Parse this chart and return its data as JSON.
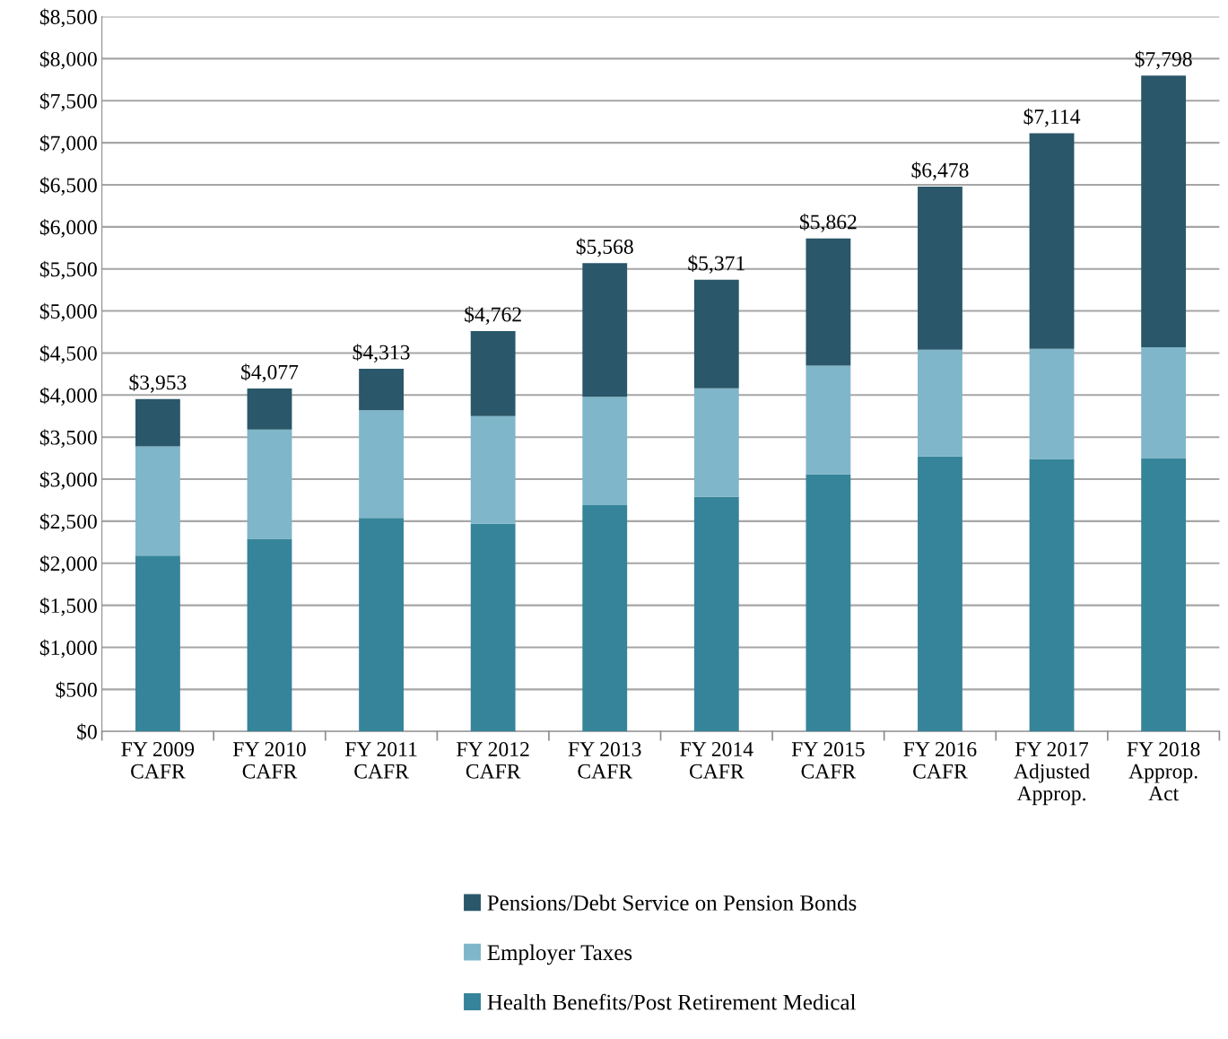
{
  "chart_data": {
    "type": "bar",
    "stacked": true,
    "categories": [
      "FY 2009\nCAFR",
      "FY 2010\nCAFR",
      "FY 2011\nCAFR",
      "FY 2012\nCAFR",
      "FY 2013\nCAFR",
      "FY 2014\nCAFR",
      "FY 2015\nCAFR",
      "FY 2016\nCAFR",
      "FY 2017\nAdjusted\nApprop.",
      "FY 2018\nApprop.\nAct"
    ],
    "series": [
      {
        "name": "Health Benefits/Post Retirement Medical",
        "color": "#36849a",
        "values": [
          2090,
          2290,
          2540,
          2470,
          2690,
          2790,
          3060,
          3270,
          3240,
          3250
        ]
      },
      {
        "name": "Employer Taxes",
        "color": "#7fb6c9",
        "values": [
          1300,
          1300,
          1280,
          1280,
          1290,
          1290,
          1290,
          1270,
          1310,
          1320
        ]
      },
      {
        "name": "Pensions/Debt Service on Pension Bonds",
        "color": "#2a5769",
        "values": [
          563,
          487,
          493,
          1012,
          1588,
          1291,
          1512,
          1938,
          2564,
          3228
        ]
      }
    ],
    "totals": [
      "$3,953",
      "$4,077",
      "$4,313",
      "$4,762",
      "$5,568",
      "$5,371",
      "$5,862",
      "$6,478",
      "$7,114",
      "$7,798"
    ],
    "ylim": [
      0,
      8500
    ],
    "yticks": [
      {
        "value": 0,
        "label": "$0"
      },
      {
        "value": 500,
        "label": "$500"
      },
      {
        "value": 1000,
        "label": "$1,000"
      },
      {
        "value": 1500,
        "label": "$1,500"
      },
      {
        "value": 2000,
        "label": "$2,000"
      },
      {
        "value": 2500,
        "label": "$2,500"
      },
      {
        "value": 3000,
        "label": "$3,000"
      },
      {
        "value": 3500,
        "label": "$3,500"
      },
      {
        "value": 4000,
        "label": "$4,000"
      },
      {
        "value": 4500,
        "label": "$4,500"
      },
      {
        "value": 5000,
        "label": "$5,000"
      },
      {
        "value": 5500,
        "label": "$5,500"
      },
      {
        "value": 6000,
        "label": "$6,000"
      },
      {
        "value": 6500,
        "label": "$6,500"
      },
      {
        "value": 7000,
        "label": "$7,000"
      },
      {
        "value": 7500,
        "label": "$7,500"
      },
      {
        "value": 8000,
        "label": "$8,000"
      },
      {
        "value": 8500,
        "label": "$8,500"
      }
    ],
    "grid": "y",
    "legend": "bottom"
  }
}
